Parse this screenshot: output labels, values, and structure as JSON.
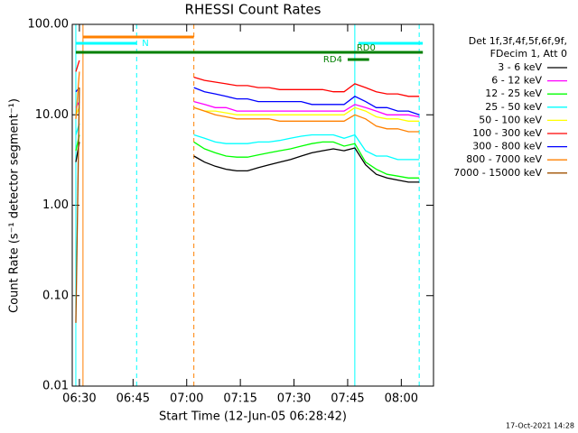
{
  "chart_data": {
    "type": "line",
    "title": "RHESSI Count Rates",
    "x_label": "Start Time (12-Jun-05 06:28:42)",
    "y_label": "Count Rate (s⁻¹ detector segment⁻¹)",
    "legend_header": [
      "Det 1f,3f,4f,5f,6f,9f,",
      "FDecim 1, Att 0"
    ],
    "footer": "17-Oct-2021 14:28",
    "log_y": true,
    "xlim": [
      "06:28",
      "08:09"
    ],
    "xticks": [
      "06:30",
      "06:45",
      "07:00",
      "07:15",
      "07:30",
      "07:45",
      "08:00"
    ],
    "ylim": [
      0.01,
      100
    ],
    "yticks": [
      0.01,
      {
        "value": 0.1,
        "label": "0.10"
      },
      {
        "value": 1,
        "label": "1.00"
      },
      {
        "value": 10,
        "label": "10.00"
      },
      {
        "value": 100,
        "label": "100.00"
      }
    ],
    "x": [
      "06:29",
      "06:30",
      "06:45",
      "07:02",
      "07:05",
      "07:08",
      "07:11",
      "07:14",
      "07:17",
      "07:20",
      "07:23",
      "07:26",
      "07:29",
      "07:32",
      "07:35",
      "07:38",
      "07:41",
      "07:44",
      "07:47",
      "07:50",
      "07:53",
      "07:56",
      "07:59",
      "08:02",
      "08:05"
    ],
    "series": [
      {
        "name": "3 - 6 keV",
        "color": "#000000",
        "values": [
          3,
          5,
          null,
          3.5,
          3,
          2.7,
          2.5,
          2.4,
          2.4,
          2.6,
          2.8,
          3,
          3.2,
          3.5,
          3.8,
          4,
          4.2,
          4,
          4.3,
          2.8,
          2.2,
          2,
          1.9,
          1.8,
          1.8
        ]
      },
      {
        "name": "6 - 12 keV",
        "color": "#ff00ff",
        "values": [
          12,
          14,
          null,
          14,
          13,
          12,
          12,
          11,
          11,
          11,
          11,
          11,
          11,
          11,
          11,
          11,
          11,
          11,
          13,
          12,
          11,
          10,
          10,
          10,
          9.5
        ]
      },
      {
        "name": "12 - 25 keV",
        "color": "#00ff00",
        "values": [
          4,
          6,
          null,
          5,
          4.2,
          3.8,
          3.5,
          3.4,
          3.4,
          3.6,
          3.8,
          4,
          4.2,
          4.5,
          4.8,
          5,
          5,
          4.5,
          4.8,
          3,
          2.5,
          2.2,
          2.1,
          2,
          2
        ]
      },
      {
        "name": "25 - 50 keV",
        "color": "#00ffff",
        "values": [
          6,
          8,
          null,
          6,
          5.5,
          5,
          4.8,
          4.8,
          4.8,
          5,
          5,
          5.2,
          5.5,
          5.8,
          6,
          6,
          6,
          5.5,
          6,
          4,
          3.5,
          3.5,
          3.2,
          3.2,
          3.2
        ]
      },
      {
        "name": "50 - 100 keV",
        "color": "#ffff00",
        "values": [
          10,
          12,
          null,
          12,
          11,
          11,
          10.5,
          10,
          10,
          10,
          10,
          10,
          10,
          10,
          10,
          10,
          10,
          10,
          12,
          11,
          9.5,
          9,
          9,
          8.5,
          8.5
        ]
      },
      {
        "name": "100 - 300 keV",
        "color": "#ff0000",
        "values": [
          30,
          40,
          null,
          26,
          24,
          23,
          22,
          21,
          21,
          20,
          20,
          19,
          19,
          19,
          19,
          19,
          18,
          18,
          22,
          20,
          18,
          17,
          17,
          16,
          16
        ]
      },
      {
        "name": "300 - 800 keV",
        "color": "#0000ff",
        "values": [
          18,
          20,
          null,
          20,
          18,
          17,
          16,
          15,
          15,
          14,
          14,
          14,
          14,
          14,
          13,
          13,
          13,
          13,
          16,
          14,
          12,
          12,
          11,
          11,
          10
        ]
      },
      {
        "name": "800 - 7000 keV",
        "color": "#ff8000",
        "values": [
          9,
          30,
          null,
          12,
          11,
          10,
          9.5,
          9,
          9,
          9,
          9,
          8.5,
          8.5,
          8.5,
          8.5,
          8.5,
          8.5,
          8.5,
          10,
          9,
          7.5,
          7,
          7,
          6.5,
          6.5
        ]
      },
      {
        "name": "7000 - 15000 keV",
        "color": "#a05000",
        "values": [
          0.05,
          20,
          null,
          null,
          null,
          null,
          null,
          null,
          null,
          null,
          null,
          null,
          null,
          null,
          null,
          null,
          null,
          null,
          null,
          null,
          null,
          null,
          null,
          null,
          null
        ]
      }
    ],
    "vlines": [
      {
        "x": "06:29",
        "color": "#00ffff",
        "dashed": false
      },
      {
        "x": "06:46",
        "color": "#00ffff",
        "dashed": true
      },
      {
        "x": "07:47",
        "color": "#00ffff",
        "dashed": false
      },
      {
        "x": "08:05",
        "color": "#00ffff",
        "dashed": true
      },
      {
        "x": "06:31",
        "color": "#ff8000",
        "dashed": false
      },
      {
        "x": "07:02",
        "color": "#ff8000",
        "dashed": true
      }
    ],
    "bars": [
      {
        "x": [
          "06:31",
          "07:02"
        ],
        "color": "#ff8000"
      },
      {
        "x": [
          "06:29",
          "06:46"
        ],
        "color": "#00ffff",
        "label": "N"
      },
      {
        "x": [
          "07:48",
          "08:06"
        ],
        "color": "#00ffff"
      },
      {
        "x": [
          "06:29",
          "08:06"
        ],
        "color": "#008000"
      },
      {
        "x": [
          "07:48",
          "08:06"
        ],
        "color": "#008000",
        "label": "RD0"
      },
      {
        "x": [
          "07:45",
          "07:51"
        ],
        "color": "#008000",
        "label": "RD4"
      }
    ]
  }
}
